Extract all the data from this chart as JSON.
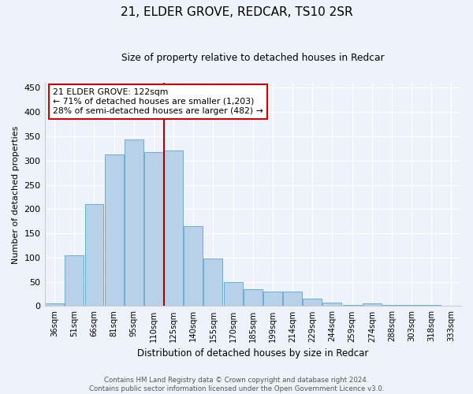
{
  "title1": "21, ELDER GROVE, REDCAR, TS10 2SR",
  "title2": "Size of property relative to detached houses in Redcar",
  "xlabel": "Distribution of detached houses by size in Redcar",
  "ylabel": "Number of detached properties",
  "categories": [
    "36sqm",
    "51sqm",
    "66sqm",
    "81sqm",
    "95sqm",
    "110sqm",
    "125sqm",
    "140sqm",
    "155sqm",
    "170sqm",
    "185sqm",
    "199sqm",
    "214sqm",
    "229sqm",
    "244sqm",
    "259sqm",
    "274sqm",
    "288sqm",
    "303sqm",
    "318sqm",
    "333sqm"
  ],
  "values": [
    6,
    105,
    210,
    313,
    343,
    318,
    320,
    165,
    98,
    50,
    35,
    30,
    30,
    15,
    8,
    3,
    5,
    2,
    2,
    2,
    1
  ],
  "bar_color": "#b8d0e8",
  "bar_edge_color": "#6aaed6",
  "highlight_line_index": 6,
  "annotation_line1": "21 ELDER GROVE: 122sqm",
  "annotation_line2": "← 71% of detached houses are smaller (1,203)",
  "annotation_line3": "28% of semi-detached houses are larger (482) →",
  "annotation_box_color": "#ffffff",
  "annotation_box_edge": "#cc0000",
  "line_color": "#aa0000",
  "footer1": "Contains HM Land Registry data © Crown copyright and database right 2024.",
  "footer2": "Contains public sector information licensed under the Open Government Licence v3.0.",
  "ylim": [
    0,
    460
  ],
  "yticks": [
    0,
    50,
    100,
    150,
    200,
    250,
    300,
    350,
    400,
    450
  ],
  "background_color": "#eef2fb"
}
